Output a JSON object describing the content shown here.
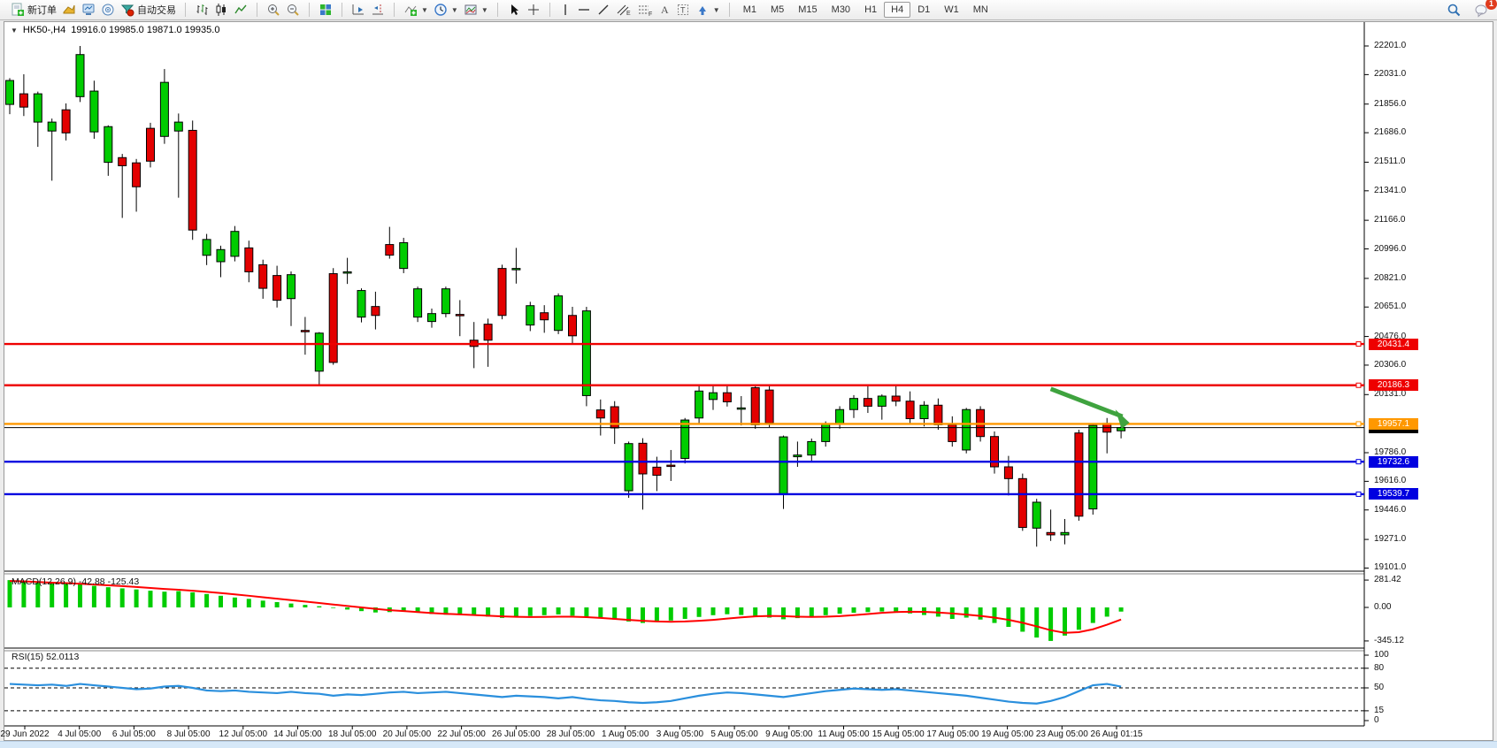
{
  "toolbar": {
    "buttons": {
      "new_order": "新订单",
      "autotrading": "自动交易"
    },
    "timeframes": [
      "M1",
      "M5",
      "M15",
      "M30",
      "H1",
      "H4",
      "D1",
      "W1",
      "MN"
    ],
    "active_timeframe": "H4",
    "notification_badge": "1",
    "icon_names": [
      "new-order",
      "new-chart",
      "market-watch",
      "navigator",
      "autotrading",
      "bar-chart",
      "candlesticks",
      "line-chart",
      "zoom-in",
      "zoom-out",
      "tile-windows",
      "auto-scroll",
      "chart-shift",
      "indicators",
      "periods",
      "templates",
      "cursor",
      "crosshair",
      "vertical-line",
      "horizontal-line",
      "trendline",
      "equidistant-channel",
      "fibonacci",
      "text",
      "text-label",
      "arrows",
      "search",
      "chat"
    ]
  },
  "chart": {
    "symbol_period": "HK50-,H4",
    "ohlc_display": "19916.0 19985.0 19871.0 19935.0",
    "price_ticks": [
      "22201.0",
      "22031.0",
      "21856.0",
      "21686.0",
      "21511.0",
      "21341.0",
      "21166.0",
      "20996.0",
      "20821.0",
      "20651.0",
      "20476.0",
      "20306.0",
      "20131.0",
      "19786.0",
      "19616.0",
      "19446.0",
      "19271.0",
      "19101.0"
    ],
    "time_labels": [
      "29 Jun 2022",
      "4 Jul 05:00",
      "6 Jul 05:00",
      "8 Jul 05:00",
      "12 Jul 05:00",
      "14 Jul 05:00",
      "18 Jul 05:00",
      "20 Jul 05:00",
      "22 Jul 05:00",
      "26 Jul 05:00",
      "28 Jul 05:00",
      "1 Aug 05:00",
      "3 Aug 05:00",
      "5 Aug 05:00",
      "9 Aug 05:00",
      "11 Aug 05:00",
      "15 Aug 05:00",
      "17 Aug 05:00",
      "19 Aug 05:00",
      "23 Aug 05:00",
      "26 Aug 01:15"
    ],
    "levels": [
      {
        "label": "20431.4",
        "price": 20431.4,
        "color": "#ee0000"
      },
      {
        "label": "20186.3",
        "price": 20186.3,
        "color": "#ee0000"
      },
      {
        "label": "19957.1",
        "price": 19957.1,
        "color": "#ff9800"
      },
      {
        "label": "19732.6",
        "price": 19732.6,
        "color": "#0000e0"
      },
      {
        "label": "19539.7",
        "price": 19539.7,
        "color": "#0000e0"
      }
    ],
    "current_price": {
      "label": "19935.0",
      "price": 19935.0,
      "color": "#000000"
    },
    "annotation_arrow": {
      "color": "#3fa33f",
      "from_index": 74,
      "from_price": 20165,
      "to_index": 79.6,
      "to_price": 19985
    },
    "chart_data": {
      "type": "candlestick",
      "symbol": "HK50-",
      "timeframe": "H4",
      "ylim": [
        19101,
        22201
      ],
      "colors": {
        "bull": "#00cc00",
        "bear": "#e30000",
        "wick": "#000000"
      },
      "ohlc": [
        [
          21854,
          22010,
          21796,
          21996
        ],
        [
          21917,
          22033,
          21785,
          21838
        ],
        [
          21749,
          21930,
          21602,
          21917
        ],
        [
          21696,
          21770,
          21401,
          21749
        ],
        [
          21822,
          21860,
          21640,
          21685
        ],
        [
          21900,
          22201,
          21868,
          22150
        ],
        [
          21691,
          21995,
          21650,
          21933
        ],
        [
          21510,
          21730,
          21430,
          21722
        ],
        [
          21538,
          21560,
          21180,
          21490
        ],
        [
          21507,
          21530,
          21217,
          21365
        ],
        [
          21712,
          21745,
          21480,
          21517
        ],
        [
          21664,
          22064,
          21620,
          21985
        ],
        [
          21696,
          21800,
          21300,
          21749
        ],
        [
          21700,
          21758,
          21050,
          21108
        ],
        [
          20958,
          21085,
          20900,
          21052
        ],
        [
          20920,
          21015,
          20828,
          20992
        ],
        [
          20952,
          21132,
          20922,
          21100
        ],
        [
          21002,
          21045,
          20798,
          20860
        ],
        [
          20902,
          20932,
          20700,
          20762
        ],
        [
          20838,
          20896,
          20648,
          20691
        ],
        [
          20701,
          20862,
          20538,
          20843
        ],
        [
          20512,
          20592,
          20368,
          20505
        ],
        [
          20270,
          20502,
          20191,
          20496
        ],
        [
          20849,
          20882,
          20308,
          20322
        ],
        [
          20852,
          20943,
          20788,
          20860
        ],
        [
          20591,
          20762,
          20560,
          20749
        ],
        [
          20654,
          20742,
          20518,
          20601
        ],
        [
          21022,
          21127,
          20938,
          20959
        ],
        [
          20880,
          21062,
          20852,
          21033
        ],
        [
          20591,
          20772,
          20562,
          20759
        ],
        [
          20565,
          20642,
          20528,
          20612
        ],
        [
          20612,
          20772,
          20590,
          20759
        ],
        [
          20607,
          20692,
          20478,
          20600
        ],
        [
          20454,
          20562,
          20288,
          20417
        ],
        [
          20549,
          20582,
          20296,
          20454
        ],
        [
          20880,
          20902,
          20578,
          20601
        ],
        [
          20872,
          21002,
          20790,
          20880
        ],
        [
          20544,
          20682,
          20508,
          20659
        ],
        [
          20617,
          20662,
          20498,
          20575
        ],
        [
          20512,
          20732,
          20490,
          20717
        ],
        [
          20601,
          20652,
          20428,
          20480
        ],
        [
          20125,
          20652,
          20062,
          20628
        ],
        [
          20040,
          20102,
          19888,
          19992
        ],
        [
          20059,
          20092,
          19838,
          19933
        ],
        [
          19560,
          19852,
          19518,
          19840
        ],
        [
          19842,
          19872,
          19448,
          19660
        ],
        [
          19700,
          19762,
          19558,
          19652
        ],
        [
          19712,
          19802,
          19618,
          19705
        ],
        [
          19752,
          19992,
          19722,
          19980
        ],
        [
          19992,
          20190,
          19958,
          20152
        ],
        [
          20102,
          20182,
          20040,
          20142
        ],
        [
          20142,
          20192,
          20060,
          20088
        ],
        [
          20050,
          20122,
          19948,
          20052
        ],
        [
          20172,
          20192,
          19928,
          19952
        ],
        [
          20158,
          20180,
          19938,
          19962
        ],
        [
          19542,
          19888,
          19452,
          19880
        ],
        [
          19762,
          19852,
          19702,
          19772
        ],
        [
          19772,
          19870,
          19730,
          19852
        ],
        [
          19852,
          19972,
          19822,
          19958
        ],
        [
          19958,
          20062,
          19928,
          20042
        ],
        [
          20042,
          20128,
          19992,
          20108
        ],
        [
          20108,
          20190,
          20022,
          20062
        ],
        [
          20062,
          20132,
          19982,
          20122
        ],
        [
          20122,
          20188,
          20062,
          20092
        ],
        [
          20092,
          20150,
          19962,
          19988
        ],
        [
          19988,
          20092,
          19942,
          20068
        ],
        [
          20068,
          20108,
          19922,
          19952
        ],
        [
          19952,
          20002,
          19822,
          19852
        ],
        [
          19802,
          20052,
          19782,
          20042
        ],
        [
          20042,
          20062,
          19852,
          19882
        ],
        [
          19882,
          19912,
          19662,
          19702
        ],
        [
          19702,
          19767,
          19532,
          19632
        ],
        [
          19632,
          19662,
          19322,
          19342
        ],
        [
          19338,
          19512,
          19228,
          19492
        ],
        [
          19312,
          19448,
          19262,
          19298
        ],
        [
          19298,
          19392,
          19242,
          19312
        ],
        [
          19903,
          19922,
          19382,
          19409
        ],
        [
          19452,
          19962,
          19418,
          19948
        ],
        [
          19960,
          19992,
          19782,
          19908
        ],
        [
          19916,
          19985,
          19871,
          19935
        ]
      ]
    }
  },
  "macd": {
    "name": "MACD(12,26,9)",
    "value": "-42.88",
    "signal_value": "-125.43",
    "ticks": [
      "281.42",
      "0.00",
      "-345.12"
    ],
    "colors": {
      "histogram": "#00cc00",
      "signal": "#ff0000"
    },
    "histogram": [
      281,
      272,
      260,
      246,
      250,
      238,
      222,
      208,
      196,
      185,
      172,
      162,
      168,
      155,
      138,
      120,
      102,
      88,
      70,
      55,
      40,
      26,
      12,
      -6,
      -22,
      -38,
      -52,
      -48,
      -42,
      -55,
      -68,
      -75,
      -70,
      -82,
      -95,
      -108,
      -98,
      -88,
      -80,
      -72,
      -85,
      -95,
      -112,
      -125,
      -145,
      -160,
      -150,
      -135,
      -118,
      -98,
      -80,
      -70,
      -78,
      -92,
      -105,
      -122,
      -110,
      -95,
      -80,
      -65,
      -55,
      -48,
      -42,
      -50,
      -62,
      -78,
      -95,
      -118,
      -105,
      -125,
      -160,
      -200,
      -250,
      -310,
      -345,
      -290,
      -230,
      -160,
      -95,
      -43
    ],
    "signal_line": [
      272,
      268,
      262,
      255,
      250,
      243,
      236,
      228,
      220,
      210,
      200,
      190,
      182,
      172,
      160,
      148,
      134,
      120,
      105,
      90,
      75,
      60,
      45,
      30,
      15,
      0,
      -15,
      -28,
      -38,
      -48,
      -58,
      -66,
      -72,
      -78,
      -85,
      -92,
      -97,
      -99,
      -98,
      -95,
      -95,
      -100,
      -108,
      -118,
      -128,
      -138,
      -145,
      -148,
      -145,
      -138,
      -128,
      -115,
      -102,
      -92,
      -88,
      -90,
      -95,
      -98,
      -96,
      -90,
      -80,
      -68,
      -56,
      -48,
      -44,
      -46,
      -52,
      -62,
      -74,
      -88,
      -105,
      -128,
      -158,
      -195,
      -235,
      -262,
      -255,
      -225,
      -178,
      -125
    ]
  },
  "rsi": {
    "name": "RSI(15)",
    "value": "52.0113",
    "ticks": [
      "100",
      "80",
      "50",
      "15",
      "0"
    ],
    "dashed_levels": [
      80,
      50,
      15
    ],
    "color": "#2a8fdd",
    "values": [
      56,
      55,
      54,
      55,
      53,
      56,
      54,
      52,
      50,
      48,
      49,
      52,
      53,
      50,
      46,
      45,
      46,
      44,
      43,
      42,
      44,
      42,
      41,
      38,
      40,
      39,
      41,
      43,
      44,
      42,
      43,
      44,
      42,
      40,
      38,
      36,
      38,
      37,
      36,
      34,
      36,
      33,
      31,
      30,
      28,
      27,
      28,
      30,
      34,
      38,
      41,
      43,
      42,
      40,
      38,
      36,
      39,
      42,
      45,
      47,
      49,
      48,
      47,
      48,
      46,
      44,
      42,
      40,
      38,
      35,
      32,
      29,
      27,
      26,
      30,
      36,
      45,
      54,
      56,
      52
    ]
  }
}
